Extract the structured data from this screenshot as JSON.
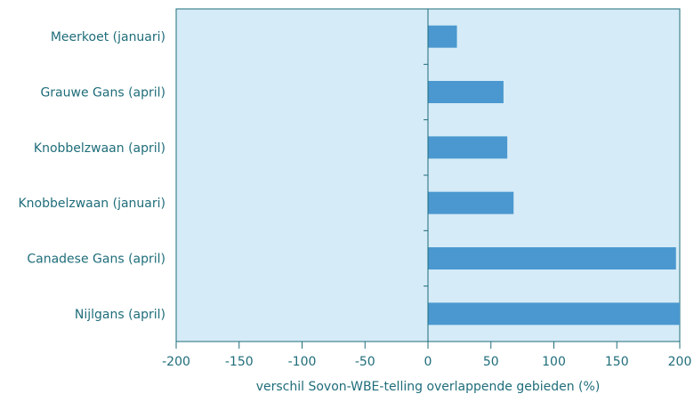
{
  "chart_data": {
    "type": "bar",
    "orientation": "horizontal",
    "categories": [
      "Meerkoet (januari)",
      "Grauwe Gans (april)",
      "Knobbelzwaan (april)",
      "Knobbelzwaan (januari)",
      "Canadese Gans (april)",
      "Nijlgans (april)"
    ],
    "values": [
      23,
      60,
      63,
      68,
      197,
      200
    ],
    "xlabel": "verschil Sovon-WBE-telling overlappende gebieden (%)",
    "ylabel": "",
    "title": "",
    "xlim": [
      -200,
      200
    ],
    "xticks": [
      "-200",
      "-150",
      "-100",
      "-50",
      "0",
      "50",
      "100",
      "150",
      "200"
    ],
    "grid": false,
    "colors": {
      "plot_background": "#d5ebf7",
      "bar": "#4a98cf",
      "axis": "#1f6d7a",
      "text": "#1f6d7a"
    }
  }
}
